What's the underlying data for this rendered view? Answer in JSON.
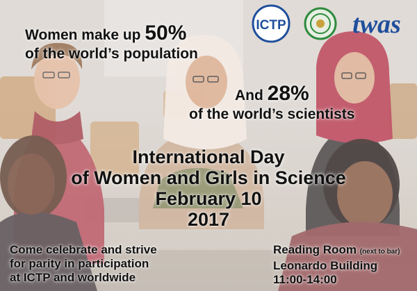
{
  "headline_stat": {
    "prefix": "Women make up ",
    "percent": "50%",
    "line2": "of the world’s population"
  },
  "secondary_stat": {
    "prefix": "And ",
    "percent": "28%",
    "line2": "of the world’s scientists"
  },
  "event": {
    "title_line1": "International Day",
    "title_line2": "of Women and Girls in Science",
    "date": "February 10",
    "year": "2017"
  },
  "invitation": {
    "line1": "Come celebrate and strive",
    "line2": "for parity in participation",
    "line3": "at ICTP and worldwide"
  },
  "venue": {
    "room": "Reading Room",
    "room_note": "(next to bar)",
    "building": "Leonardo Building",
    "time": "11:00-14:00"
  },
  "logos": {
    "ictp": "ICTP",
    "twas": "twas",
    "seal": "academy-seal-logo"
  },
  "colors": {
    "brand_blue": "#1f4e9c",
    "seal_green": "#2e8b3e",
    "text": "#111111"
  }
}
